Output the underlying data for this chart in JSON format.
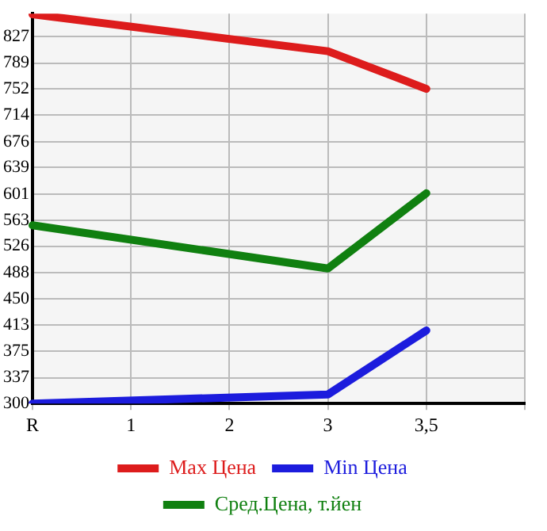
{
  "chart_data": {
    "type": "line",
    "categories": [
      "R",
      "1",
      "2",
      "3",
      "3,5",
      null
    ],
    "series": [
      {
        "name": "Max Цена",
        "color": "#dd1c1c",
        "values": [
          859,
          null,
          null,
          806,
          752,
          null
        ]
      },
      {
        "name": "Min Цена",
        "color": "#1c1cdd",
        "values": [
          300,
          null,
          null,
          313,
          405,
          null
        ]
      },
      {
        "name": "Сред.Цена, т.йен",
        "color": "#108010",
        "values": [
          556,
          null,
          null,
          494,
          602,
          null
        ]
      }
    ],
    "ylim": [
      300,
      860
    ],
    "yticks": [
      300,
      337,
      375,
      413,
      450,
      488,
      526,
      563,
      601,
      639,
      676,
      714,
      752,
      789,
      827
    ],
    "grid": true,
    "legend": "bottom",
    "marker": "none",
    "line_style": "solid"
  }
}
